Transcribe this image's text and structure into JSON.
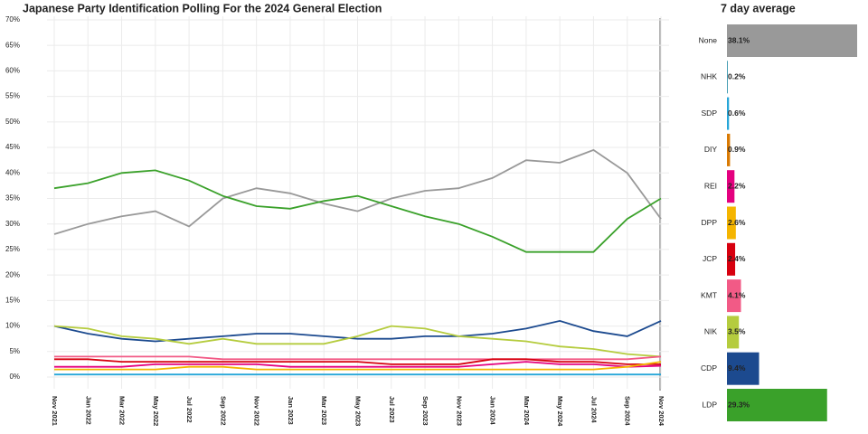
{
  "chart_data": [
    {
      "type": "line",
      "title": "Japanese Party Identification Polling For the 2024 General Election",
      "categories": [
        "Nov 2021",
        "Jan 2022",
        "Mar 2022",
        "May 2022",
        "Jul 2022",
        "Sep 2022",
        "Nov 2022",
        "Jan 2023",
        "Mar 2023",
        "May 2023",
        "Jul 2023",
        "Sep 2023",
        "Nov 2023",
        "Jan 2024",
        "Mar 2024",
        "May 2024",
        "Jul 2024",
        "Sep 2024",
        "Nov 2024"
      ],
      "ylim": [
        -2.3,
        70.7
      ],
      "yticks": [
        {
          "value": 0,
          "label": "0%"
        },
        {
          "value": 5,
          "label": "5%"
        },
        {
          "value": 10,
          "label": "10%"
        },
        {
          "value": 15,
          "label": "15%"
        },
        {
          "value": 20,
          "label": "20%"
        },
        {
          "value": 25,
          "label": "25%"
        },
        {
          "value": 30,
          "label": "30%"
        },
        {
          "value": 35,
          "label": "35%"
        },
        {
          "value": 40,
          "label": "40%"
        },
        {
          "value": 45,
          "label": "45%"
        },
        {
          "value": 50,
          "label": "50%"
        },
        {
          "value": 55,
          "label": "55%"
        },
        {
          "value": 60,
          "label": "60%"
        },
        {
          "value": 65,
          "label": "65%"
        },
        {
          "value": 70,
          "label": "70%"
        }
      ],
      "grid": true,
      "series": [
        {
          "name": "None",
          "color": "#999999",
          "values": [
            28,
            30,
            31.5,
            32.5,
            29.5,
            35,
            37,
            36,
            34,
            32.5,
            35,
            36.5,
            37,
            39,
            42.5,
            42,
            44.5,
            40,
            31
          ]
        },
        {
          "name": "LDP",
          "color": "#3aa12a",
          "values": [
            37,
            38,
            40,
            40.5,
            38.5,
            35.5,
            33.5,
            33,
            34.5,
            35.5,
            33.5,
            31.5,
            30,
            27.5,
            24.5,
            24.5,
            24.5,
            31,
            35
          ]
        },
        {
          "name": "CDP",
          "color": "#1c4a8f",
          "values": [
            10,
            8.5,
            7.5,
            7,
            7.5,
            8,
            8.5,
            8.5,
            8,
            7.5,
            7.5,
            8,
            8,
            8.5,
            9.5,
            11,
            9,
            8,
            11
          ]
        },
        {
          "name": "NIK",
          "color": "#b5cc3e",
          "values": [
            10,
            9.5,
            8,
            7.5,
            6.5,
            7.5,
            6.5,
            6.5,
            6.5,
            8,
            10,
            9.5,
            8,
            7.5,
            7,
            6,
            5.5,
            4.5,
            4
          ]
        },
        {
          "name": "KMT",
          "color": "#f25a86",
          "values": [
            4,
            4,
            4,
            4,
            4,
            3.5,
            3.5,
            3.5,
            3.5,
            3.5,
            3.5,
            3.5,
            3.5,
            3.5,
            3.5,
            3.5,
            3.5,
            3.5,
            4
          ]
        },
        {
          "name": "JCP",
          "color": "#d7000f",
          "values": [
            3.5,
            3.5,
            3,
            3,
            3,
            3,
            3,
            3,
            3,
            3,
            2.5,
            2.5,
            2.5,
            3.5,
            3.5,
            3,
            3,
            2.5,
            2.5
          ]
        },
        {
          "name": "REI",
          "color": "#e4007f",
          "values": [
            2,
            2,
            2,
            2.5,
            2.5,
            2.5,
            2.5,
            2,
            2,
            2,
            2,
            2,
            2,
            2.5,
            3,
            2.5,
            2.5,
            2,
            2.2
          ]
        },
        {
          "name": "DPP",
          "color": "#f5b500",
          "values": [
            1.5,
            1.5,
            1.5,
            1.5,
            2,
            2,
            1.5,
            1.5,
            1.5,
            1.5,
            1.5,
            1.5,
            1.5,
            1.5,
            1.5,
            1.5,
            1.5,
            2,
            3
          ]
        },
        {
          "name": "SDP",
          "color": "#27a6d8",
          "values": [
            0.5,
            0.5,
            0.5,
            0.5,
            0.5,
            0.5,
            0.5,
            0.5,
            0.5,
            0.5,
            0.5,
            0.5,
            0.5,
            0.5,
            0.5,
            0.5,
            0.5,
            0.5,
            0.5
          ]
        }
      ]
    },
    {
      "type": "bar",
      "orientation": "horizontal",
      "title": "7 day average",
      "categories": [
        "None",
        "NHK",
        "SDP",
        "DIY",
        "REI",
        "DPP",
        "JCP",
        "KMT",
        "NIK",
        "CDP",
        "LDP"
      ],
      "values": [
        38.1,
        0.2,
        0.6,
        0.9,
        2.2,
        2.6,
        2.4,
        4.1,
        3.5,
        9.4,
        29.3
      ],
      "value_labels": [
        "38.1%",
        "0.2%",
        "0.6%",
        "0.9%",
        "2.2%",
        "2.6%",
        "2.4%",
        "4.1%",
        "3.5%",
        "9.4%",
        "29.3%"
      ],
      "colors": [
        "#999999",
        "#0a7e9b",
        "#27a6d8",
        "#d97a04",
        "#e4007f",
        "#f5b500",
        "#d7000f",
        "#f25a86",
        "#b5cc3e",
        "#1c4a8f",
        "#3aa12a"
      ]
    }
  ]
}
